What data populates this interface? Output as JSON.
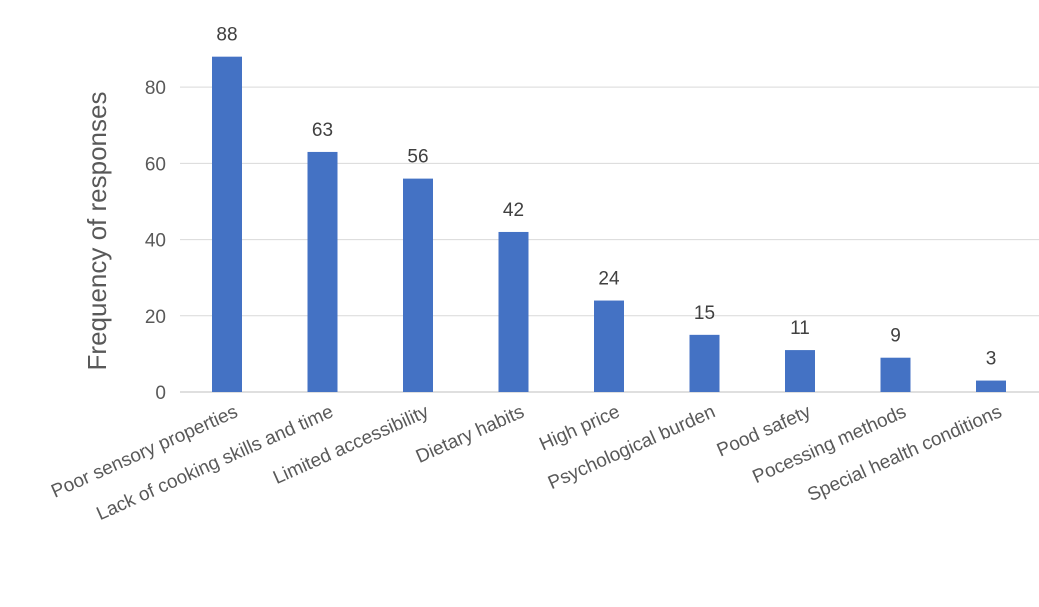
{
  "chart_data": {
    "type": "bar",
    "title": "",
    "xlabel": "",
    "ylabel": "Frequency of responses",
    "categories": [
      "Poor sensory properties",
      "Lack of cooking skills and time",
      "Limited accessibility",
      "Dietary habits",
      "High price",
      "Psychological burden",
      "Pood safety",
      "Pocessing methods",
      "Special health conditions"
    ],
    "values": [
      88,
      63,
      56,
      42,
      24,
      15,
      11,
      9,
      3
    ],
    "ylim": [
      0,
      95
    ],
    "yticks": [
      0,
      20,
      40,
      60,
      80
    ],
    "grid": true,
    "legend": "none",
    "colors": {
      "bar": "#4472C4",
      "grid": "#D9D9D9",
      "axis": "#BFBFBF"
    }
  }
}
